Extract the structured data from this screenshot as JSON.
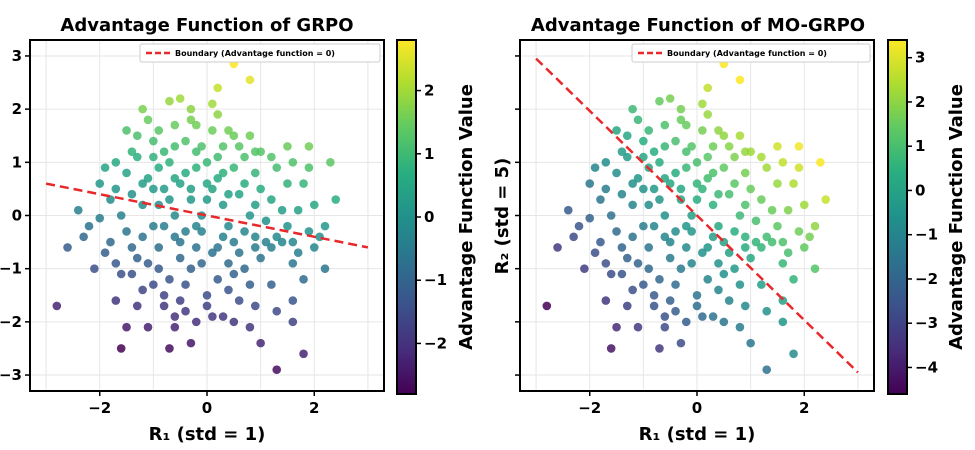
{
  "chart_data": [
    {
      "type": "scatter",
      "title": "Advantage Function of GRPO",
      "xlabel": "R₁ (std = 1)",
      "ylabel": "",
      "xlim": [
        -3.3,
        3.3
      ],
      "ylim": [
        -3.3,
        3.3
      ],
      "xticks": [
        -2,
        0,
        2
      ],
      "yticks": [
        -3,
        -2,
        -1,
        0,
        1,
        2,
        3
      ],
      "grid": true,
      "legend": {
        "placement": "top-right",
        "entries": [
          "Boundary (Advantage function = 0)"
        ]
      },
      "boundary": {
        "style": "dashed",
        "color": "#e8292b",
        "x": [
          -3,
          3
        ],
        "y": [
          0.6,
          -0.6
        ]
      },
      "colorbar": {
        "label": "Advantage Function Value",
        "min": -2.8,
        "max": 2.8,
        "ticks": [
          -2,
          -1,
          0,
          1,
          2
        ],
        "colormap": "viridis"
      },
      "color_rule": "advantage = R1 + 5*R2 (normalized)",
      "points": [
        [
          0.5,
          2.85
        ],
        [
          0.8,
          2.55
        ],
        [
          -1.2,
          2.0
        ],
        [
          -0.7,
          2.15
        ],
        [
          0.2,
          2.4
        ],
        [
          -1.1,
          1.8
        ],
        [
          -1.5,
          1.6
        ],
        [
          -0.3,
          1.8
        ],
        [
          0.4,
          1.6
        ],
        [
          1.0,
          1.2
        ],
        [
          1.5,
          1.3
        ],
        [
          1.9,
          1.3
        ],
        [
          2.3,
          1.0
        ],
        [
          -2.0,
          -0.05
        ],
        [
          -2.2,
          -0.2
        ],
        [
          -2.6,
          -0.6
        ],
        [
          -2.8,
          -1.7
        ],
        [
          -1.7,
          -1.6
        ],
        [
          -1.5,
          -2.1
        ],
        [
          -1.1,
          -2.1
        ],
        [
          -0.6,
          -2.1
        ],
        [
          -0.3,
          -2.4
        ],
        [
          -0.7,
          -2.5
        ],
        [
          -1.6,
          -2.5
        ],
        [
          0.3,
          -1.9
        ],
        [
          0.8,
          -2.1
        ],
        [
          1.0,
          -2.4
        ],
        [
          1.3,
          -2.9
        ],
        [
          1.8,
          -2.6
        ],
        [
          1.6,
          -1.6
        ],
        [
          1.8,
          -1.2
        ],
        [
          2.1,
          -0.4
        ],
        [
          2.2,
          -1.0
        ],
        [
          2.4,
          0.3
        ],
        [
          -1.9,
          0.9
        ],
        [
          -1.7,
          0.5
        ],
        [
          -1.4,
          -1.1
        ],
        [
          -1.3,
          -0.8
        ],
        [
          -1.2,
          0.2
        ],
        [
          -1.0,
          0.5
        ],
        [
          -0.8,
          1.2
        ],
        [
          -0.5,
          0.6
        ],
        [
          -0.2,
          0.9
        ],
        [
          0.0,
          1.0
        ],
        [
          0.3,
          0.2
        ],
        [
          0.6,
          0.4
        ],
        [
          0.9,
          0.8
        ],
        [
          1.2,
          0.3
        ],
        [
          1.4,
          -0.5
        ],
        [
          -0.6,
          -0.4
        ],
        [
          -0.4,
          -1.3
        ],
        [
          -0.1,
          -0.9
        ],
        [
          0.2,
          -0.6
        ],
        [
          0.5,
          -1.1
        ],
        [
          0.7,
          -0.3
        ],
        [
          1.0,
          -0.8
        ],
        [
          -1.6,
          0.0
        ],
        [
          -1.8,
          -0.5
        ],
        [
          -0.9,
          -0.6
        ],
        [
          -0.2,
          -0.2
        ],
        [
          0.1,
          0.5
        ],
        [
          0.4,
          -0.2
        ],
        [
          0.8,
          0.0
        ],
        [
          1.1,
          -0.1
        ],
        [
          1.5,
          0.6
        ],
        [
          1.7,
          0.1
        ],
        [
          -0.3,
          0.3
        ],
        [
          -0.6,
          0.0
        ],
        [
          -1.0,
          -0.2
        ],
        [
          0.0,
          -1.5
        ],
        [
          0.6,
          -1.6
        ],
        [
          -0.8,
          -1.5
        ],
        [
          -1.2,
          -1.4
        ],
        [
          0.3,
          1.3
        ],
        [
          0.7,
          1.1
        ],
        [
          -0.4,
          1.4
        ],
        [
          -0.9,
          0.9
        ],
        [
          1.3,
          0.9
        ],
        [
          1.8,
          0.6
        ],
        [
          -0.1,
          0.0
        ],
        [
          0.2,
          -1.2
        ],
        [
          -0.5,
          -0.8
        ],
        [
          -1.4,
          0.4
        ],
        [
          -2.3,
          -0.4
        ],
        [
          -0.7,
          0.3
        ],
        [
          0.9,
          -0.6
        ],
        [
          1.2,
          -1.3
        ],
        [
          1.6,
          -0.9
        ],
        [
          2.0,
          0.2
        ],
        [
          -1.0,
          1.4
        ],
        [
          -0.6,
          1.7
        ],
        [
          0.1,
          1.6
        ],
        [
          0.5,
          0.9
        ],
        [
          -0.2,
          -0.6
        ],
        [
          0.4,
          0.4
        ],
        [
          -1.5,
          -0.3
        ],
        [
          -1.1,
          0.7
        ],
        [
          -0.3,
          -1.0
        ],
        [
          0.8,
          -1.3
        ],
        [
          1.0,
          0.5
        ],
        [
          -1.3,
          1.1
        ],
        [
          -0.5,
          -1.6
        ],
        [
          0.0,
          0.3
        ],
        [
          0.6,
          -0.7
        ],
        [
          1.4,
          0.1
        ],
        [
          -0.8,
          0.5
        ],
        [
          -0.9,
          -1.0
        ],
        [
          -0.4,
          -0.3
        ],
        [
          0.2,
          0.7
        ],
        [
          1.1,
          -0.5
        ],
        [
          -1.7,
          -0.9
        ],
        [
          1.9,
          -0.3
        ],
        [
          0.3,
          -0.4
        ],
        [
          -0.2,
          1.2
        ],
        [
          0.7,
          0.6
        ],
        [
          -1.2,
          -0.4
        ],
        [
          0.5,
          -0.5
        ],
        [
          -0.7,
          -1.2
        ],
        [
          -2.1,
          -1.0
        ],
        [
          -1.9,
          -0.7
        ],
        [
          -1.6,
          -1.1
        ],
        [
          -1.4,
          -0.6
        ],
        [
          -1.1,
          -0.9
        ],
        [
          -0.8,
          -0.2
        ],
        [
          -0.5,
          -0.5
        ],
        [
          -0.1,
          -0.3
        ],
        [
          0.1,
          -0.7
        ],
        [
          0.4,
          -0.9
        ],
        [
          0.7,
          -1.0
        ],
        [
          0.9,
          -0.4
        ],
        [
          1.2,
          -0.6
        ],
        [
          1.5,
          -0.2
        ],
        [
          1.7,
          -0.7
        ],
        [
          2.0,
          -0.6
        ],
        [
          -1.8,
          0.3
        ],
        [
          -1.5,
          0.8
        ],
        [
          -1.2,
          0.6
        ],
        [
          -0.9,
          0.2
        ],
        [
          -0.6,
          0.7
        ],
        [
          -0.3,
          0.5
        ],
        [
          0.0,
          0.6
        ],
        [
          0.3,
          0.8
        ],
        [
          0.6,
          1.3
        ],
        [
          0.9,
          1.2
        ],
        [
          1.2,
          1.1
        ],
        [
          1.6,
          1.0
        ],
        [
          -1.0,
          1.1
        ],
        [
          -0.7,
          1.0
        ],
        [
          -0.4,
          0.8
        ],
        [
          -0.1,
          1.3
        ],
        [
          0.2,
          1.1
        ],
        [
          0.5,
          1.5
        ],
        [
          0.8,
          1.5
        ],
        [
          -0.6,
          1.3
        ],
        [
          -1.3,
          1.5
        ],
        [
          -0.2,
          1.7
        ],
        [
          0.2,
          1.9
        ],
        [
          -0.5,
          2.2
        ],
        [
          0.9,
          0.2
        ],
        [
          1.3,
          -0.4
        ],
        [
          1.6,
          -0.5
        ],
        [
          1.9,
          0.9
        ],
        [
          2.2,
          -0.2
        ],
        [
          -2.4,
          0.1
        ],
        [
          -2.0,
          0.6
        ],
        [
          -1.7,
          1.0
        ],
        [
          -1.4,
          1.2
        ],
        [
          -0.9,
          1.6
        ],
        [
          -0.3,
          2.0
        ],
        [
          0.1,
          2.1
        ],
        [
          -0.8,
          -1.7
        ],
        [
          -0.4,
          -1.8
        ],
        [
          0.0,
          -1.7
        ],
        [
          0.4,
          -1.4
        ],
        [
          -1.0,
          -1.3
        ],
        [
          -1.3,
          -1.7
        ],
        [
          0.9,
          -1.7
        ],
        [
          1.3,
          -1.8
        ],
        [
          1.6,
          -2.0
        ],
        [
          -0.6,
          -1.9
        ],
        [
          -0.2,
          -2.0
        ],
        [
          0.1,
          -1.9
        ],
        [
          0.5,
          -2.0
        ]
      ]
    },
    {
      "type": "scatter",
      "title": "Advantage Function of MO-GRPO",
      "xlabel": "R₁ (std = 1)",
      "ylabel": "R₂ (std = 5)",
      "xlim": [
        -3.3,
        3.3
      ],
      "ylim": [
        -3.3,
        3.3
      ],
      "xticks": [
        -2,
        0,
        2
      ],
      "yticks": [],
      "grid": true,
      "legend": {
        "placement": "top-right",
        "entries": [
          "Boundary (Advantage function = 0)"
        ]
      },
      "boundary": {
        "style": "dashed",
        "color": "#e8292b",
        "x": [
          -3,
          3
        ],
        "y": [
          2.95,
          -2.95
        ]
      },
      "colorbar": {
        "label": "Advantage Function Value",
        "min": -4.6,
        "max": 3.4,
        "ticks": [
          -4,
          -3,
          -2,
          -1,
          0,
          1,
          2,
          3
        ],
        "colormap": "viridis"
      },
      "color_rule": "advantage = R1 + R2 (normalized)"
    }
  ]
}
